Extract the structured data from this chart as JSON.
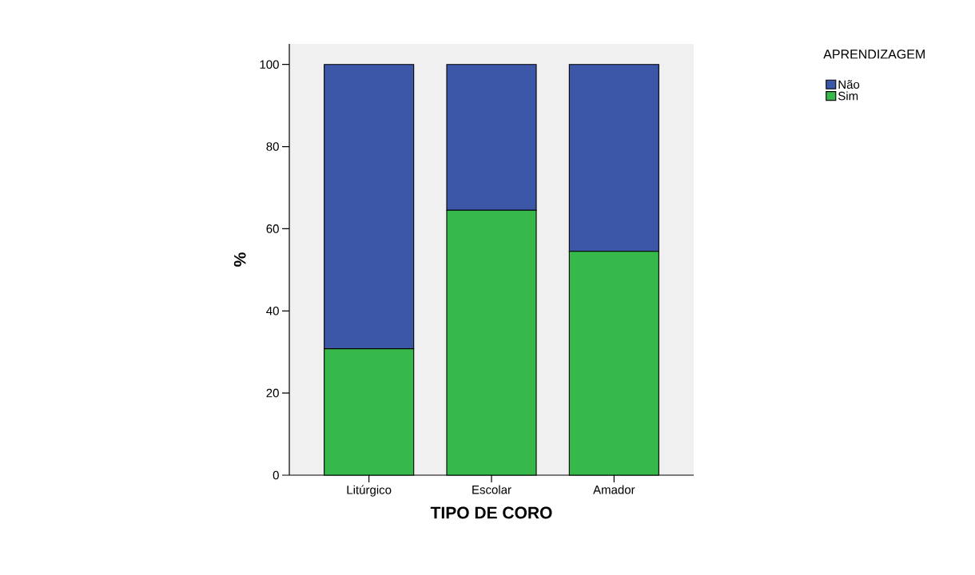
{
  "chart_data": {
    "type": "bar",
    "stacked": true,
    "categories": [
      "Litúrgico",
      "Escolar",
      "Amador"
    ],
    "series": [
      {
        "name": "Sim",
        "color": "#37b84a",
        "values": [
          30.8,
          64.5,
          54.5
        ]
      },
      {
        "name": "Não",
        "color": "#3c57a8",
        "values": [
          69.2,
          35.5,
          45.5
        ]
      }
    ],
    "xlabel": "TIPO DE CORO",
    "ylabel": "%",
    "legend_title": "APRENDIZAGEM",
    "legend": "top right",
    "ylim": [
      0,
      105
    ],
    "yticks": [
      0,
      20,
      40,
      60,
      80,
      100
    ],
    "grid": false
  }
}
